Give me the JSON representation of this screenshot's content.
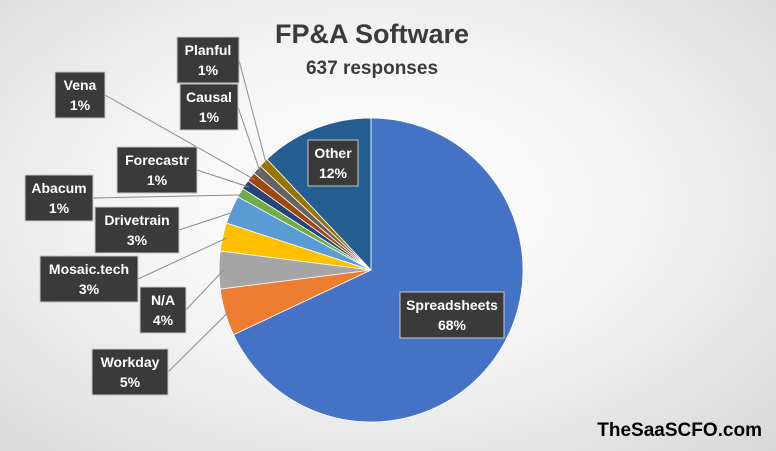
{
  "chart_data": {
    "type": "pie",
    "title": "FP&A Software",
    "subtitle": "637 responses",
    "slices": [
      {
        "label": "Spreadsheets",
        "value": 68,
        "display": "68%",
        "color": "#4472C4"
      },
      {
        "label": "Workday",
        "value": 5,
        "display": "5%",
        "color": "#ED7D31"
      },
      {
        "label": "N/A",
        "value": 4,
        "display": "4%",
        "color": "#A5A5A5"
      },
      {
        "label": "Mosaic.tech",
        "value": 3,
        "display": "3%",
        "color": "#FFC000"
      },
      {
        "label": "Drivetrain",
        "value": 3,
        "display": "3%",
        "color": "#5B9BD5"
      },
      {
        "label": "Abacum",
        "value": 1,
        "display": "1%",
        "color": "#70AD47"
      },
      {
        "label": "Forecastr",
        "value": 1,
        "display": "1%",
        "color": "#264478"
      },
      {
        "label": "Vena",
        "value": 1,
        "display": "1%",
        "color": "#9E480E"
      },
      {
        "label": "Causal",
        "value": 1,
        "display": "1%",
        "color": "#636363"
      },
      {
        "label": "Planful",
        "value": 1,
        "display": "1%",
        "color": "#997300"
      },
      {
        "label": "Other",
        "value": 12,
        "display": "12%",
        "color": "#255E91"
      }
    ]
  },
  "watermark": "TheSaaSCFO.com"
}
